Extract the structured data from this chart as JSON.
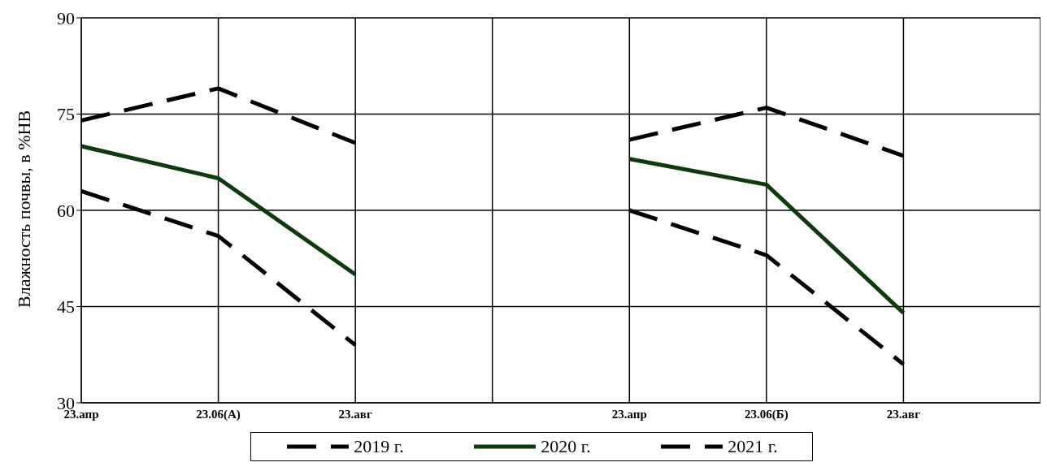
{
  "chart_data": {
    "type": "line",
    "ylabel": "Влажность почвы, в %НВ",
    "categories": [
      "23.апр",
      "23.06(А)",
      "23.авг",
      null,
      "23.апр",
      "23.06(Б)",
      "23.авг",
      null
    ],
    "series": [
      {
        "name": "2019 г.",
        "color": "#000000",
        "line_style": "dashed",
        "values": [
          74,
          79,
          70.5,
          null,
          71,
          76,
          68.5,
          null
        ]
      },
      {
        "name": "2020 г.",
        "color": "#0d3b0d",
        "line_style": "solid",
        "values": [
          70,
          65,
          50,
          null,
          68,
          64,
          44,
          null
        ]
      },
      {
        "name": "2021 г.",
        "color": "#000000",
        "line_style": "dashed",
        "values": [
          63,
          56,
          39,
          null,
          60,
          53,
          36,
          null
        ]
      }
    ],
    "ylim": [
      30,
      90
    ],
    "yticks": [
      30,
      45,
      60,
      75,
      90
    ],
    "grid": true,
    "legend": "bottom",
    "marker": "none"
  }
}
